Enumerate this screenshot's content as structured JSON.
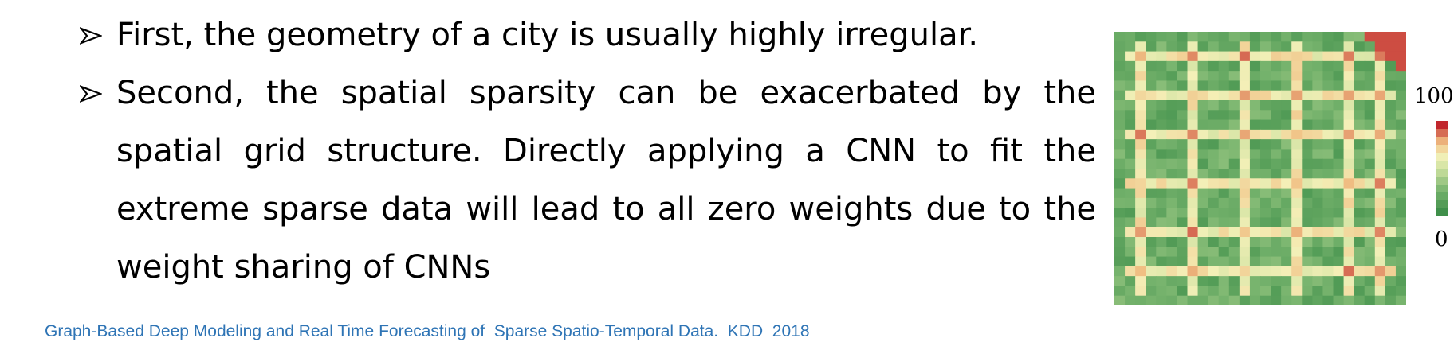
{
  "bullets": [
    "First, the geometry of a city is usually highly irregular.",
    "Second, the spatial sparsity can be exacerbated by the spatial grid structure. Directly applying a CNN to fit the extreme sparse data will lead to all zero weights due to the weight sharing of CNNs"
  ],
  "bullet_marker_icon": "hollow-arrow-right-icon",
  "colorbar": {
    "max_label": "100",
    "min_label": "0"
  },
  "citation": "Graph-Based Deep Modeling and Real Time Forecasting of  Sparse Spatio-Temporal Data.  KDD  2018",
  "colors": {
    "text": "#000000",
    "citation": "#2e74b5",
    "heatmap_low": "#3f8f4a",
    "heatmap_mid": "#f4f0b8",
    "heatmap_high": "#c1272d"
  }
}
